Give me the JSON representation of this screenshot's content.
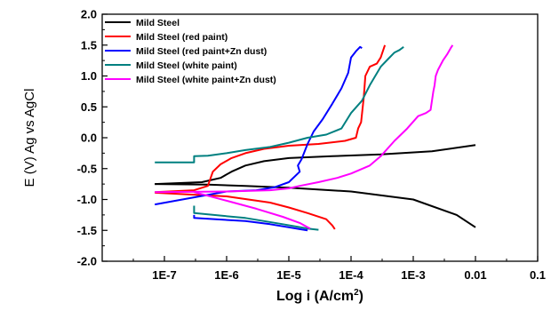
{
  "chart_data": {
    "type": "line",
    "title": "",
    "xlabel": "Log i (A/cm",
    "xlabel_sup": "2",
    "xlabel_tail": ")",
    "ylabel": "E (V) Ag vs AgCl",
    "x_scale": "log",
    "xlim": [
      1e-08,
      0.1
    ],
    "ylim": [
      -2.0,
      2.0
    ],
    "x_ticks": [
      {
        "value": 1e-07,
        "label": "1E-7"
      },
      {
        "value": 1e-06,
        "label": "1E-6"
      },
      {
        "value": 1e-05,
        "label": "1E-5"
      },
      {
        "value": 0.0001,
        "label": "1E-4"
      },
      {
        "value": 0.001,
        "label": "1E-3"
      },
      {
        "value": 0.01,
        "label": "0.01"
      },
      {
        "value": 0.1,
        "label": "0.1"
      }
    ],
    "y_ticks": [
      {
        "value": 2.0,
        "label": "2.0"
      },
      {
        "value": 1.5,
        "label": "1.5"
      },
      {
        "value": 1.0,
        "label": "1.0"
      },
      {
        "value": 0.5,
        "label": "0.5"
      },
      {
        "value": 0.0,
        "label": "0.0"
      },
      {
        "value": -0.5,
        "label": "-0.5"
      },
      {
        "value": -1.0,
        "label": "-1.0"
      },
      {
        "value": -1.5,
        "label": "-1.5"
      },
      {
        "value": -2.0,
        "label": "-2.0"
      }
    ],
    "legend_position": "top-left",
    "grid": false,
    "series": [
      {
        "name": "Mild Steel",
        "color": "#000000",
        "branches": [
          {
            "x": [
              7e-08,
              5e-07,
              2e-06,
              1e-05,
              0.0001,
              0.001,
              0.005,
              0.01
            ],
            "y": [
              -0.75,
              -0.76,
              -0.78,
              -0.81,
              -0.87,
              -1.0,
              -1.25,
              -1.45
            ]
          },
          {
            "x": [
              7e-08,
              4e-07,
              8e-07,
              1.2e-06,
              2e-06,
              4e-06,
              1e-05,
              5e-05,
              0.0003,
              0.002,
              0.01
            ],
            "y": [
              -0.75,
              -0.72,
              -0.65,
              -0.55,
              -0.45,
              -0.38,
              -0.33,
              -0.3,
              -0.27,
              -0.22,
              -0.12
            ]
          }
        ]
      },
      {
        "name": "Mild Steel (red paint)",
        "color": "#ff0000",
        "branches": [
          {
            "x": [
              7e-08,
              1e-06,
              5e-06,
              1e-05,
              2e-05,
              4e-05,
              5e-05,
              5.5e-05
            ],
            "y": [
              -0.89,
              -0.95,
              -1.05,
              -1.13,
              -1.22,
              -1.32,
              -1.42,
              -1.48
            ]
          },
          {
            "x": [
              7e-08,
              3e-07,
              5e-07,
              6e-07,
              8e-07,
              1.2e-06,
              2e-06,
              4e-06,
              1e-05,
              3e-05,
              8e-05,
              0.00012,
              0.00013,
              0.000145,
              0.00016,
              0.00017,
              0.0002,
              0.00026,
              0.0003,
              0.00035
            ],
            "y": [
              -0.88,
              -0.85,
              -0.78,
              -0.55,
              -0.43,
              -0.33,
              -0.25,
              -0.18,
              -0.13,
              -0.1,
              -0.05,
              0.0,
              0.15,
              0.25,
              0.65,
              1.0,
              1.15,
              1.2,
              1.3,
              1.5
            ]
          }
        ]
      },
      {
        "name": "Mild Steel (red paint+Zn dust)",
        "color": "#0000ff",
        "branches": [
          {
            "x": [
              3e-07,
              3e-07,
              2e-06,
              5e-06,
              1e-05,
              1.5e-05,
              2e-05
            ],
            "y": [
              -1.25,
              -1.3,
              -1.35,
              -1.4,
              -1.45,
              -1.48,
              -1.5
            ]
          },
          {
            "x": [
              7e-08,
              1e-06,
              3e-06,
              6e-06,
              1e-05,
              1.5e-05,
              1.4e-05,
              1.6e-05,
              2e-05,
              2.5e-05,
              3.5e-05,
              5e-05,
              7e-05,
              9e-05,
              0.0001,
              0.00012,
              0.00014,
              0.00015
            ],
            "y": [
              -1.08,
              -0.87,
              -0.85,
              -0.8,
              -0.72,
              -0.55,
              -0.45,
              -0.35,
              -0.1,
              0.1,
              0.3,
              0.55,
              0.8,
              1.05,
              1.3,
              1.4,
              1.47,
              1.45
            ]
          }
        ]
      },
      {
        "name": "Mild Steel (white paint)",
        "color": "#008080",
        "branches": [
          {
            "x": [
              3e-07,
              3e-07,
              2e-06,
              8e-06,
              2e-05,
              3e-05
            ],
            "y": [
              -1.1,
              -1.22,
              -1.3,
              -1.4,
              -1.47,
              -1.49
            ]
          },
          {
            "x": [
              7e-08,
              3e-07,
              3e-07,
              5e-07,
              1e-06,
              2e-06,
              5e-06,
              1e-05,
              2e-05,
              4e-05,
              7e-05,
              0.0001,
              0.00015,
              0.0002,
              0.0003,
              0.0004,
              0.0005,
              0.0006,
              0.0007
            ],
            "y": [
              -0.4,
              -0.4,
              -0.3,
              -0.29,
              -0.25,
              -0.2,
              -0.15,
              -0.08,
              0.0,
              0.05,
              0.15,
              0.4,
              0.6,
              0.85,
              1.15,
              1.28,
              1.38,
              1.42,
              1.47
            ]
          }
        ]
      },
      {
        "name": "Mild Steel (white paint+Zn dust)",
        "color": "#ff00ff",
        "branches": [
          {
            "x": [
              3e-07,
              1e-06,
              3e-06,
              8e-06,
              1.5e-05,
              2e-05,
              2.2e-05
            ],
            "y": [
              -0.88,
              -1.02,
              -1.15,
              -1.28,
              -1.38,
              -1.45,
              -1.47
            ]
          },
          {
            "x": [
              7e-08,
              1e-06,
              5e-06,
              1e-05,
              1.5e-05,
              3e-05,
              6e-05,
              0.0001,
              0.0002,
              0.0003,
              0.0005,
              0.0008,
              0.0012,
              0.0016,
              0.0019,
              0.0021,
              0.0022,
              0.0023,
              0.0025,
              0.003,
              0.0035,
              0.004,
              0.0043
            ],
            "y": [
              -0.88,
              -0.87,
              -0.85,
              -0.82,
              -0.78,
              -0.72,
              -0.65,
              -0.58,
              -0.45,
              -0.3,
              -0.05,
              0.15,
              0.35,
              0.4,
              0.45,
              0.75,
              0.85,
              1.0,
              1.1,
              1.25,
              1.35,
              1.45,
              1.5
            ]
          }
        ]
      }
    ]
  }
}
